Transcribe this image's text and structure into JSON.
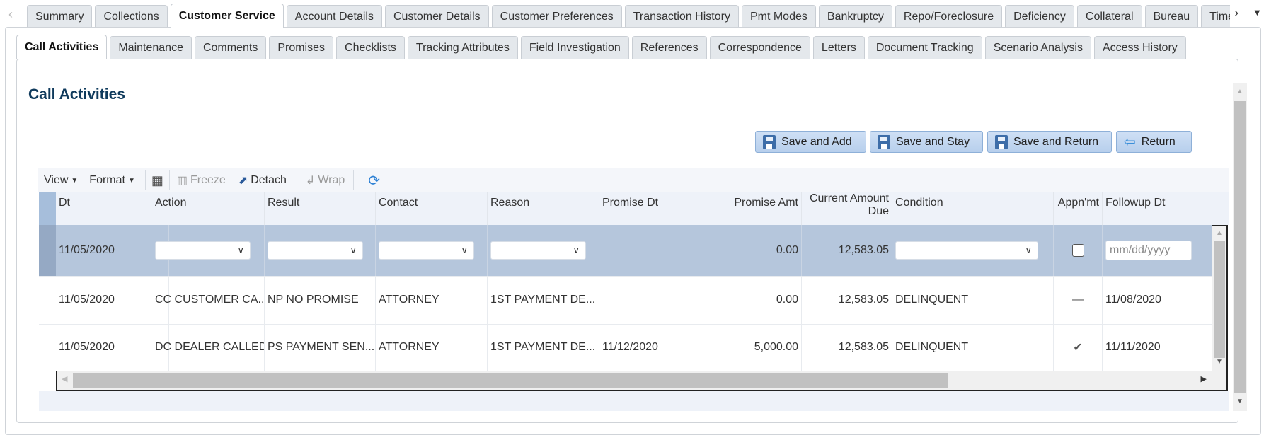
{
  "top_tabs": [
    "Summary",
    "Collections",
    "Customer Service",
    "Account Details",
    "Customer Details",
    "Customer Preferences",
    "Transaction History",
    "Pmt Modes",
    "Bankruptcy",
    "Repo/Foreclosure",
    "Deficiency",
    "Collateral",
    "Bureau",
    "Timeli"
  ],
  "top_tabs_selected": "Customer Service",
  "sub_tabs": [
    "Call Activities",
    "Maintenance",
    "Comments",
    "Promises",
    "Checklists",
    "Tracking Attributes",
    "Field Investigation",
    "References",
    "Correspondence",
    "Letters",
    "Document Tracking",
    "Scenario Analysis",
    "Access History"
  ],
  "sub_tabs_selected": "Call Activities",
  "page_title": "Call Activities",
  "buttons": {
    "save_add": "Save and Add",
    "save_stay": "Save and Stay",
    "save_return": "Save and Return",
    "return": "Return"
  },
  "toolbar": {
    "view": "View",
    "format": "Format",
    "freeze": "Freeze",
    "detach": "Detach",
    "wrap": "Wrap"
  },
  "columns": [
    "Dt",
    "Action",
    "Result",
    "Contact",
    "Reason",
    "Promise Dt",
    "Promise Amt",
    "Current Amount Due",
    "Condition",
    "Appn'mt",
    "Followup Dt"
  ],
  "new_row": {
    "dt": "11/05/2020",
    "promise_amt": "0.00",
    "current_amount_due": "12,583.05",
    "followup_placeholder": "mm/dd/yyyy",
    "appnmt_checked": false
  },
  "rows": [
    {
      "dt": "11/05/2020",
      "action": "CC CUSTOMER CA...",
      "result": "NP NO PROMISE",
      "contact": "ATTORNEY",
      "reason": "1ST PAYMENT DE...",
      "promise_dt": "",
      "promise_amt": "0.00",
      "current_amount_due": "12,583.05",
      "condition": "DELINQUENT",
      "appnmt": "—",
      "followup_dt": "11/08/2020"
    },
    {
      "dt": "11/05/2020",
      "action": "DC DEALER CALLED",
      "result": "PS PAYMENT SEN...",
      "contact": "ATTORNEY",
      "reason": "1ST PAYMENT DE...",
      "promise_dt": "11/12/2020",
      "promise_amt": "5,000.00",
      "current_amount_due": "12,583.05",
      "condition": "DELINQUENT",
      "appnmt": "✔",
      "followup_dt": "11/11/2020"
    }
  ]
}
